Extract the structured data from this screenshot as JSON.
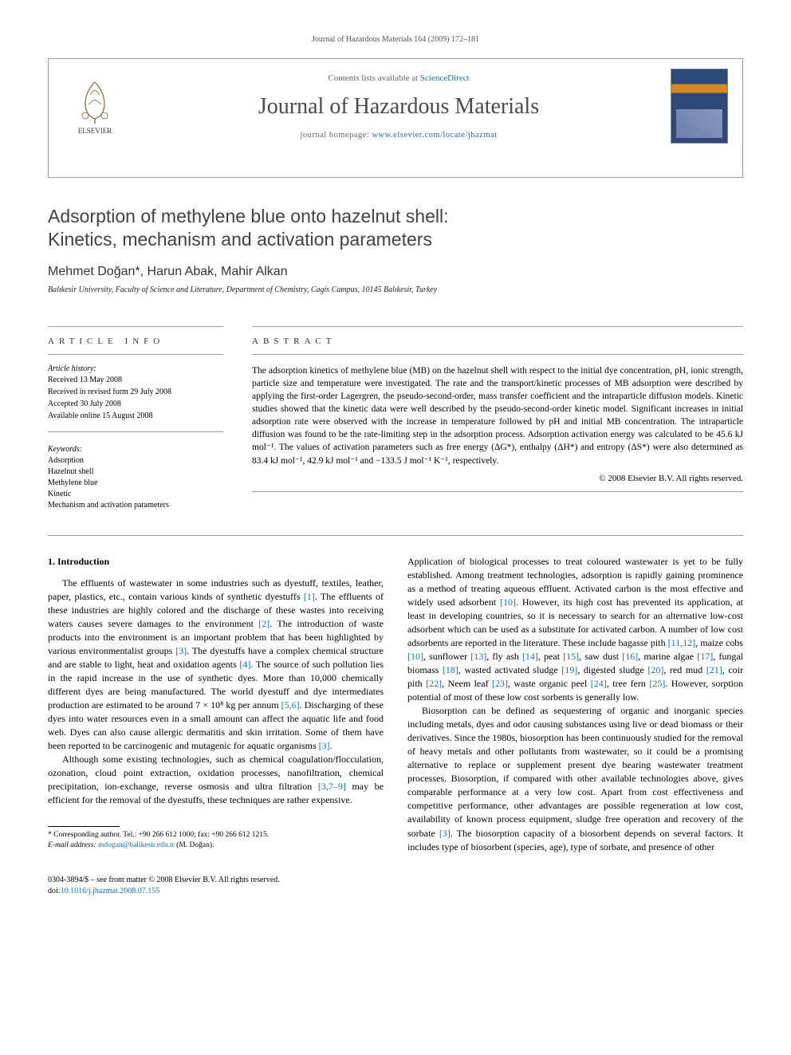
{
  "running_head": "Journal of Hazardous Materials 164 (2009) 172–181",
  "header": {
    "contents_prefix": "Contents lists available at ",
    "contents_link": "ScienceDirect",
    "journal_name": "Journal of Hazardous Materials",
    "homepage_prefix": "journal homepage: ",
    "homepage_url": "www.elsevier.com/locate/jhazmat",
    "publisher": "ELSEVIER"
  },
  "title_line1": "Adsorption of methylene blue onto hazelnut shell:",
  "title_line2": "Kinetics, mechanism and activation parameters",
  "authors": "Mehmet Doğan*, Harun Abak, Mahir Alkan",
  "affiliation": "Balıkesir University, Faculty of Science and Literature, Department of Chemistry, Cagis Campus, 10145 Balıkesir, Turkey",
  "article_info_heading": "article info",
  "abstract_heading": "abstract",
  "history": {
    "label": "Article history:",
    "received": "Received 13 May 2008",
    "revised": "Received in revised form 29 July 2008",
    "accepted": "Accepted 30 July 2008",
    "online": "Available online 15 August 2008"
  },
  "keywords": {
    "label": "Keywords:",
    "items": [
      "Adsorption",
      "Hazelnut shell",
      "Methylene blue",
      "Kinetic",
      "Mechanism and activation parameters"
    ]
  },
  "abstract": "The adsorption kinetics of methylene blue (MB) on the hazelnut shell with respect to the initial dye concentration, pH, ionic strength, particle size and temperature were investigated. The rate and the transport/kinetic processes of MB adsorption were described by applying the first-order Lagergren, the pseudo-second-order, mass transfer coefficient and the intraparticle diffusion models. Kinetic studies showed that the kinetic data were well described by the pseudo-second-order kinetic model. Significant increases in initial adsorption rate were observed with the increase in temperature followed by pH and initial MB concentration. The intraparticle diffusion was found to be the rate-limiting step in the adsorption process. Adsorption activation energy was calculated to be 45.6 kJ mol⁻¹. The values of activation parameters such as free energy (ΔG*), enthalpy (ΔH*) and entropy (ΔS*) were also determined as 83.4 kJ mol⁻¹, 42.9 kJ mol⁻¹ and −133.5 J mol⁻¹ K⁻¹, respectively.",
  "copyright": "© 2008 Elsevier B.V. All rights reserved.",
  "section1_heading": "1. Introduction",
  "para1": "The effluents of wastewater in some industries such as dyestuff, textiles, leather, paper, plastics, etc., contain various kinds of synthetic dyestuffs [1]. The effluents of these industries are highly colored and the discharge of these wastes into receiving waters causes severe damages to the environment [2]. The introduction of waste products into the environment is an important problem that has been highlighted by various environmentalist groups [3]. The dyestuffs have a complex chemical structure and are stable to light, heat and oxidation agents [4]. The source of such pollution lies in the rapid increase in the use of synthetic dyes. More than 10,000 chemically different dyes are being manufactured. The world dyestuff and dye intermediates production are estimated to be around 7 × 10⁸ kg per annum [5,6]. Discharging of these dyes into water resources even in a small amount can affect the aquatic life and food web. Dyes can also cause allergic dermatitis and skin irritation. Some of them have been reported to be carcinogenic and mutagenic for aquatic organisms [3].",
  "para2": "Although some existing technologies, such as chemical coagulation/flocculation, ozonation, cloud point extraction, oxidation processes, nanofiltration, chemical precipitation, ion-exchange, reverse osmosis and ultra filtration [3,7–9] may be efficient for the removal of the dyestuffs, these techniques are rather expensive.",
  "para3": "Application of biological processes to treat coloured wastewater is yet to be fully established. Among treatment technologies, adsorption is rapidly gaining prominence as a method of treating aqueous effluent. Activated carbon is the most effective and widely used adsorbent [10]. However, its high cost has prevented its application, at least in developing countries, so it is necessary to search for an alternative low-cost adsorbent which can be used as a substitute for activated carbon. A number of low cost adsorbents are reported in the literature. These include bagasse pith [11,12], maize cobs [10], sunflower [13], fly ash [14], peat [15], saw dust [16], marine algae [17], fungal biomass [18], wasted activated sludge [19], digested sludge [20], red mud [21], coir pith [22], Neem leaf [23], waste organic peel [24], tree fern [25]. However, sorption potential of most of these low cost sorbents is generally low.",
  "para4": "Biosorption can be defined as sequestering of organic and inorganic species including metals, dyes and odor causing substances using live or dead biomass or their derivatives. Since the 1980s, biosorption has been continuously studied for the removal of heavy metals and other pollutants from wastewater, so it could be a promising alternative to replace or supplement present dye bearing wastewater treatment processes. Biosorption, if compared with other available technologies above, gives comparable performance at a very low cost. Apart from cost effectiveness and competitive performance, other advantages are possible regeneration at low cost, availability of known process equipment, sludge free operation and recovery of the sorbate [3]. The biosorption capacity of a biosorbent depends on several factors. It includes type of biosorbent (species, age), type of sorbate, and presence of other",
  "footnote": {
    "corr": "* Corresponding author. Tel.: +90 266 612 1000; fax: +90 266 612 1215.",
    "email_label": "E-mail address: ",
    "email": "mdogan@balikesir.edu.tr",
    "email_suffix": " (M. Doğan)."
  },
  "footer": {
    "issn": "0304-3894/$ – see front matter © 2008 Elsevier B.V. All rights reserved.",
    "doi_label": "doi:",
    "doi": "10.1016/j.jhazmat.2008.07.155"
  }
}
